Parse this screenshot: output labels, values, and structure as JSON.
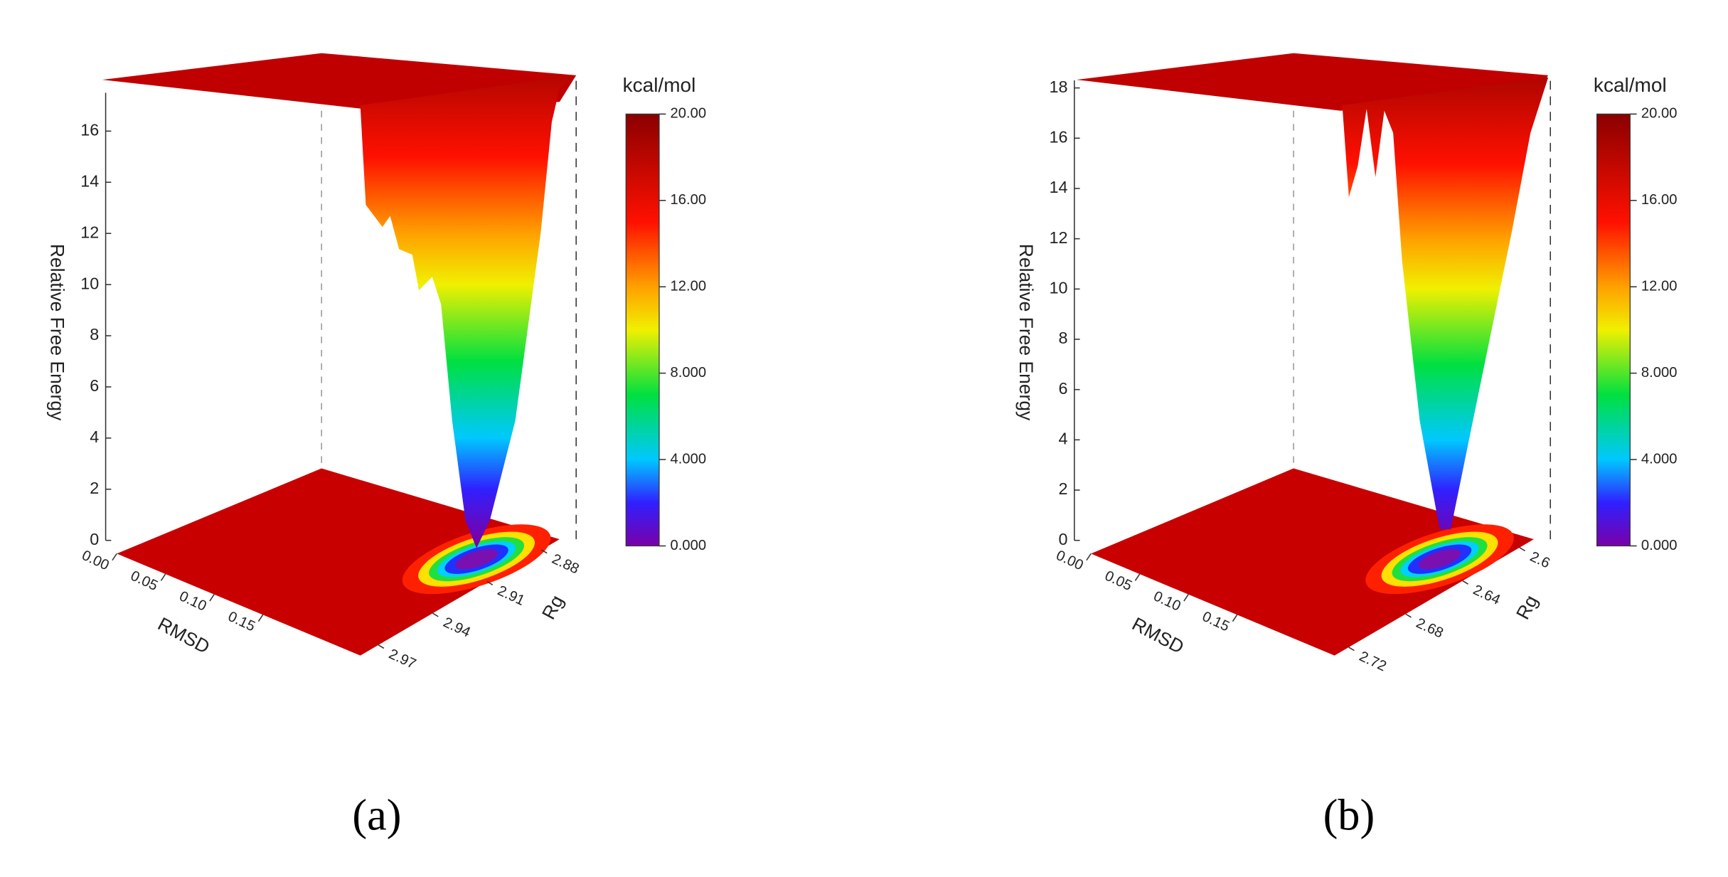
{
  "chart_data": [
    {
      "type": "surface",
      "panel_label": "(a)",
      "zlabel": "Relative Free Energy",
      "xlabel": "RMSD",
      "ylabel": "Rg",
      "zlim": [
        0,
        17.5
      ],
      "zticks": [
        0,
        2,
        4,
        6,
        8,
        10,
        12,
        14,
        16
      ],
      "xlim": [
        0,
        0.25
      ],
      "xticks": [
        {
          "value": 0,
          "label": "0.00"
        },
        {
          "value": 0.05,
          "label": "0.05"
        },
        {
          "value": 0.1,
          "label": "0.10"
        },
        {
          "value": 0.15,
          "label": "0.15"
        }
      ],
      "ylim": [
        2.87,
        2.98
      ],
      "yticks": [
        2.88,
        2.91,
        2.94,
        2.97
      ],
      "colorbar_label": "kcal/mol",
      "clim": [
        0,
        20
      ],
      "cticks": [
        {
          "value": 0,
          "label": "0.000"
        },
        {
          "value": 4,
          "label": "4.000"
        },
        {
          "value": 8,
          "label": "8.000"
        },
        {
          "value": 12,
          "label": "12.00"
        },
        {
          "value": 16,
          "label": "16.00"
        },
        {
          "value": 20,
          "label": "20.00"
        }
      ]
    },
    {
      "type": "surface",
      "panel_label": "(b)",
      "zlabel": "Relative Free Energy",
      "xlabel": "RMSD",
      "ylabel": "Rg",
      "zlim": [
        0,
        18.3
      ],
      "zticks": [
        0,
        2,
        4,
        6,
        8,
        10,
        12,
        14,
        16,
        18
      ],
      "xlim": [
        0,
        0.25
      ],
      "xticks": [
        {
          "value": 0,
          "label": "0.00"
        },
        {
          "value": 0.05,
          "label": "0.05"
        },
        {
          "value": 0.1,
          "label": "0.10"
        },
        {
          "value": 0.15,
          "label": "0.15"
        }
      ],
      "ylim": [
        2.59,
        2.73
      ],
      "yticks": [
        2.6,
        2.64,
        2.68,
        2.72
      ],
      "colorbar_label": "kcal/mol",
      "clim": [
        0,
        20
      ],
      "cticks": [
        {
          "value": 0,
          "label": "0.000"
        },
        {
          "value": 4,
          "label": "4.000"
        },
        {
          "value": 8,
          "label": "8.000"
        },
        {
          "value": 12,
          "label": "12.00"
        },
        {
          "value": 16,
          "label": "16.00"
        },
        {
          "value": 20,
          "label": "20.00"
        }
      ]
    }
  ]
}
